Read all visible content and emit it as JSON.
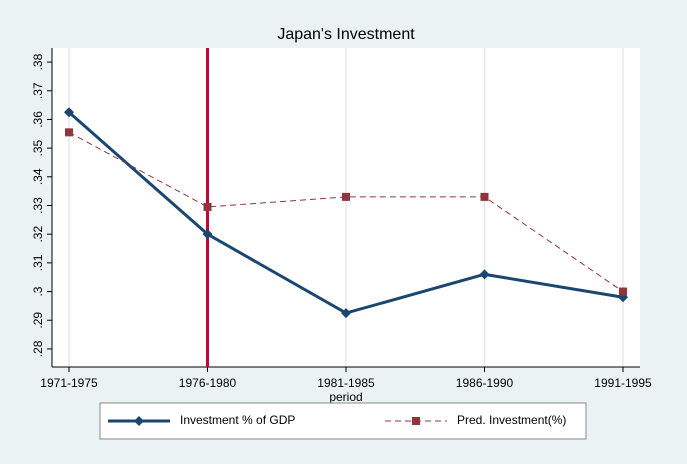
{
  "chart_data": {
    "type": "line",
    "title": "Japan's Investment",
    "x_label": "period",
    "categories": [
      "1971-1975",
      "1976-1980",
      "1981-1985",
      "1986-1990",
      "1991-1995"
    ],
    "series": [
      {
        "name": "Investment % of GDP",
        "color": "#1a476f",
        "marker": "diamond",
        "dash": "solid",
        "values": [
          0.3625,
          0.32,
          0.2925,
          0.306,
          0.298
        ]
      },
      {
        "name": "Pred. Investment(%)",
        "color": "#90353b",
        "marker": "square",
        "dash": "dashed",
        "values": [
          0.3555,
          0.3295,
          0.333,
          0.333,
          0.3
        ]
      }
    ],
    "ylim": [
      0.2737,
      0.3849
    ],
    "yticks": [
      {
        "value": 0.28,
        "label": ".28"
      },
      {
        "value": 0.29,
        "label": ".29"
      },
      {
        "value": 0.3,
        "label": ".3"
      },
      {
        "value": 0.31,
        "label": ".31"
      },
      {
        "value": 0.32,
        "label": ".32"
      },
      {
        "value": 0.33,
        "label": ".33"
      },
      {
        "value": 0.34,
        "label": ".34"
      },
      {
        "value": 0.35,
        "label": ".35"
      },
      {
        "value": 0.36,
        "label": ".36"
      },
      {
        "value": 0.37,
        "label": ".37"
      },
      {
        "value": 0.38,
        "label": ".38"
      }
    ],
    "xgrid": true,
    "xline": "1976-1980",
    "xline_color": "#c10534",
    "legend": "bottom"
  }
}
